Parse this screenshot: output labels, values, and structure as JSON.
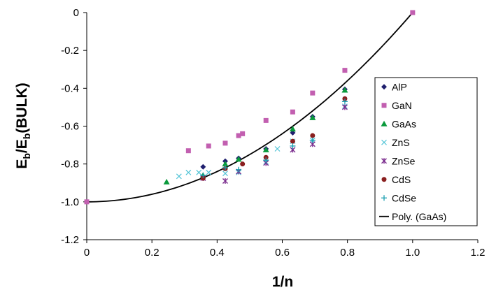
{
  "chart_data": {
    "type": "scatter",
    "title": "",
    "xlabel": "1/n",
    "ylabel_main": "E",
    "ylabel_sub1": "b",
    "ylabel_mid": "/E",
    "ylabel_sub2": "b",
    "ylabel_tail": "(BULK)",
    "xlim": [
      0,
      1.2
    ],
    "ylim": [
      -1.2,
      0
    ],
    "xticks": [
      "0",
      "0.2",
      "0.4",
      "0.6",
      "0.8",
      "1.0",
      "1.2"
    ],
    "yticks": [
      "0",
      "-0.2",
      "-0.4",
      "-0.6",
      "-0.8",
      "-1.0",
      "-1.2"
    ],
    "grid": false,
    "legend_position": "right",
    "series": [
      {
        "name": "AlP",
        "marker": "diamond",
        "color": "#1f1f6e",
        "points": [
          [
            0.357,
            -0.815
          ],
          [
            0.425,
            -0.785
          ],
          [
            0.466,
            -0.77
          ],
          [
            0.55,
            -0.72
          ],
          [
            0.632,
            -0.635
          ],
          [
            0.693,
            -0.55
          ],
          [
            0.792,
            -0.405
          ]
        ]
      },
      {
        "name": "GaN",
        "marker": "square",
        "color": "#c25fb0",
        "points": [
          [
            0,
            -1.0
          ],
          [
            0.312,
            -0.73
          ],
          [
            0.374,
            -0.705
          ],
          [
            0.425,
            -0.69
          ],
          [
            0.466,
            -0.65
          ],
          [
            0.478,
            -0.64
          ],
          [
            0.55,
            -0.57
          ],
          [
            0.632,
            -0.525
          ],
          [
            0.693,
            -0.425
          ],
          [
            0.792,
            -0.305
          ],
          [
            1.0,
            0.0
          ]
        ]
      },
      {
        "name": "GaAs",
        "marker": "triangle",
        "color": "#0a9a3c",
        "points": [
          [
            0.245,
            -0.895
          ],
          [
            0.357,
            -0.86
          ],
          [
            0.425,
            -0.8
          ],
          [
            0.466,
            -0.775
          ],
          [
            0.55,
            -0.725
          ],
          [
            0.632,
            -0.615
          ],
          [
            0.693,
            -0.555
          ],
          [
            0.792,
            -0.41
          ]
        ]
      },
      {
        "name": "ZnS",
        "marker": "x",
        "color": "#4fc3d6",
        "points": [
          [
            0.283,
            -0.865
          ],
          [
            0.312,
            -0.845
          ],
          [
            0.344,
            -0.845
          ],
          [
            0.374,
            -0.845
          ],
          [
            0.425,
            -0.85
          ],
          [
            0.466,
            -0.845
          ],
          [
            0.55,
            -0.79
          ],
          [
            0.585,
            -0.72
          ],
          [
            0.632,
            -0.68
          ],
          [
            0.693,
            -0.675
          ],
          [
            0.792,
            -0.495
          ]
        ]
      },
      {
        "name": "ZnSe",
        "marker": "star",
        "color": "#7b2d8e",
        "points": [
          [
            0.357,
            -0.875
          ],
          [
            0.425,
            -0.89
          ],
          [
            0.466,
            -0.84
          ],
          [
            0.55,
            -0.795
          ],
          [
            0.632,
            -0.725
          ],
          [
            0.693,
            -0.695
          ],
          [
            0.792,
            -0.5
          ]
        ]
      },
      {
        "name": "CdS",
        "marker": "circle",
        "color": "#8a1f1f",
        "points": [
          [
            0.357,
            -0.875
          ],
          [
            0.425,
            -0.825
          ],
          [
            0.478,
            -0.8
          ],
          [
            0.55,
            -0.765
          ],
          [
            0.632,
            -0.68
          ],
          [
            0.693,
            -0.65
          ],
          [
            0.792,
            -0.455
          ]
        ]
      },
      {
        "name": "CdSe",
        "marker": "plus",
        "color": "#1a9fb0",
        "points": [
          [
            0.357,
            -0.86
          ],
          [
            0.425,
            -0.82
          ],
          [
            0.466,
            -0.83
          ],
          [
            0.55,
            -0.78
          ],
          [
            0.632,
            -0.705
          ],
          [
            0.693,
            -0.675
          ],
          [
            0.792,
            -0.47
          ]
        ]
      }
    ],
    "trendline": {
      "name": "Poly. (GaAs)",
      "color": "#000000",
      "function": "y = x^2 - 1",
      "x_range": [
        0,
        1.0
      ]
    }
  }
}
